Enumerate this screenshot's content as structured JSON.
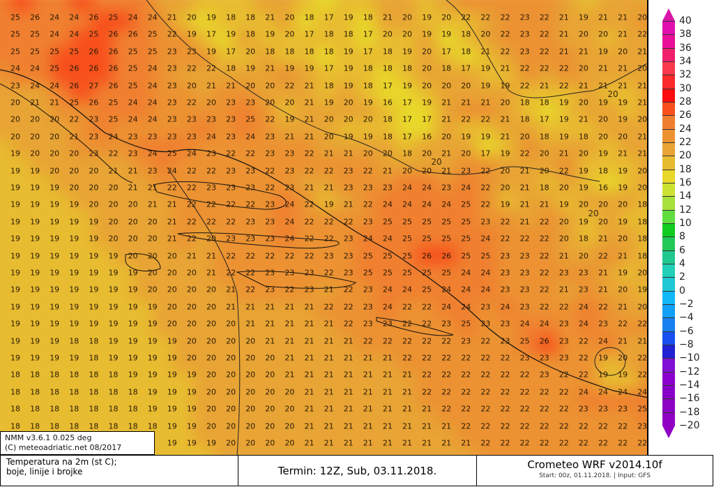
{
  "map": {
    "variable_grid": [
      [
        25,
        26,
        24,
        24,
        26,
        25,
        24,
        24,
        21,
        20,
        19,
        18,
        18,
        21,
        20,
        18,
        17,
        19,
        18,
        21,
        20,
        19,
        20,
        22,
        22,
        22,
        23,
        22,
        21,
        19,
        21,
        21,
        20
      ],
      [
        25,
        25,
        24,
        24,
        25,
        26,
        26,
        25,
        22,
        19,
        17,
        19,
        18,
        19,
        20,
        17,
        18,
        18,
        17,
        20,
        20,
        19,
        19,
        18,
        20,
        22,
        23,
        22,
        21,
        20,
        20,
        21,
        22
      ],
      [
        25,
        25,
        25,
        25,
        26,
        26,
        25,
        25,
        23,
        23,
        19,
        17,
        20,
        18,
        18,
        18,
        18,
        19,
        17,
        18,
        19,
        20,
        17,
        18,
        21,
        22,
        23,
        22,
        21,
        21,
        19,
        20,
        21
      ],
      [
        24,
        24,
        25,
        26,
        26,
        26,
        25,
        24,
        23,
        22,
        22,
        18,
        19,
        21,
        19,
        19,
        17,
        19,
        18,
        18,
        18,
        20,
        18,
        17,
        19,
        21,
        22,
        22,
        22,
        20,
        21,
        21,
        20
      ],
      [
        23,
        24,
        24,
        26,
        27,
        26,
        25,
        24,
        23,
        20,
        21,
        21,
        20,
        20,
        22,
        21,
        18,
        19,
        18,
        17,
        19,
        20,
        20,
        20,
        19,
        19,
        22,
        21,
        22,
        21,
        21,
        21,
        21
      ],
      [
        20,
        21,
        21,
        25,
        26,
        25,
        24,
        24,
        23,
        22,
        20,
        23,
        23,
        20,
        20,
        21,
        19,
        20,
        19,
        16,
        17,
        19,
        21,
        21,
        21,
        20,
        18,
        18,
        19,
        20,
        19,
        19,
        21
      ],
      [
        20,
        20,
        20,
        22,
        23,
        25,
        24,
        24,
        23,
        23,
        23,
        23,
        25,
        22,
        19,
        21,
        20,
        20,
        20,
        18,
        17,
        17,
        21,
        22,
        22,
        21,
        18,
        17,
        19,
        21,
        20,
        19,
        20
      ],
      [
        20,
        20,
        20,
        21,
        23,
        24,
        23,
        23,
        23,
        23,
        24,
        23,
        24,
        23,
        21,
        21,
        20,
        19,
        19,
        18,
        17,
        16,
        20,
        19,
        19,
        21,
        20,
        18,
        19,
        18,
        20,
        20,
        21
      ],
      [
        19,
        20,
        20,
        20,
        23,
        22,
        23,
        24,
        25,
        24,
        23,
        22,
        22,
        23,
        23,
        22,
        21,
        21,
        20,
        20,
        18,
        20,
        21,
        20,
        17,
        19,
        22,
        20,
        21,
        20,
        19,
        21,
        21
      ],
      [
        19,
        19,
        20,
        20,
        20,
        21,
        21,
        23,
        24,
        22,
        22,
        23,
        23,
        22,
        23,
        22,
        22,
        23,
        22,
        21,
        20,
        20,
        21,
        23,
        22,
        20,
        21,
        20,
        22,
        19,
        18,
        19,
        20
      ],
      [
        19,
        19,
        19,
        20,
        20,
        20,
        21,
        21,
        22,
        22,
        23,
        23,
        23,
        22,
        23,
        21,
        21,
        23,
        23,
        23,
        24,
        24,
        23,
        24,
        22,
        20,
        21,
        18,
        20,
        19,
        16,
        19,
        20
      ],
      [
        19,
        19,
        19,
        19,
        20,
        20,
        20,
        21,
        21,
        22,
        22,
        22,
        22,
        23,
        24,
        22,
        19,
        21,
        22,
        24,
        24,
        24,
        24,
        25,
        22,
        19,
        21,
        21,
        19,
        20,
        20,
        20,
        18
      ],
      [
        19,
        19,
        19,
        19,
        19,
        20,
        20,
        20,
        21,
        22,
        22,
        22,
        23,
        23,
        24,
        22,
        22,
        22,
        23,
        25,
        25,
        25,
        25,
        25,
        23,
        22,
        21,
        22,
        20,
        19,
        20,
        19,
        18
      ],
      [
        19,
        19,
        19,
        19,
        19,
        20,
        20,
        20,
        21,
        22,
        20,
        23,
        23,
        23,
        24,
        22,
        22,
        23,
        24,
        24,
        25,
        25,
        25,
        25,
        24,
        22,
        22,
        22,
        20,
        18,
        21,
        20,
        18
      ],
      [
        19,
        19,
        19,
        19,
        19,
        19,
        20,
        20,
        20,
        21,
        21,
        22,
        22,
        22,
        22,
        22,
        23,
        23,
        25,
        25,
        25,
        26,
        26,
        25,
        25,
        23,
        23,
        22,
        21,
        20,
        22,
        21,
        18
      ],
      [
        19,
        19,
        19,
        19,
        19,
        19,
        19,
        20,
        20,
        20,
        21,
        22,
        22,
        23,
        23,
        23,
        22,
        23,
        25,
        25,
        25,
        25,
        25,
        24,
        24,
        23,
        23,
        22,
        23,
        23,
        21,
        19,
        20
      ],
      [
        19,
        19,
        19,
        19,
        19,
        19,
        19,
        20,
        20,
        20,
        20,
        21,
        22,
        23,
        22,
        23,
        21,
        22,
        23,
        24,
        24,
        25,
        24,
        24,
        24,
        23,
        23,
        22,
        21,
        23,
        21,
        20,
        19
      ],
      [
        19,
        19,
        19,
        19,
        19,
        19,
        19,
        19,
        20,
        20,
        20,
        21,
        21,
        21,
        21,
        21,
        22,
        22,
        23,
        24,
        22,
        22,
        24,
        24,
        23,
        24,
        23,
        22,
        22,
        24,
        22,
        21,
        20
      ],
      [
        19,
        19,
        19,
        19,
        19,
        19,
        19,
        19,
        20,
        20,
        20,
        20,
        21,
        21,
        21,
        21,
        21,
        22,
        23,
        23,
        22,
        22,
        23,
        25,
        23,
        23,
        24,
        24,
        23,
        24,
        23,
        22,
        22
      ],
      [
        19,
        19,
        19,
        18,
        18,
        19,
        19,
        19,
        19,
        20,
        20,
        20,
        20,
        21,
        21,
        21,
        21,
        21,
        22,
        22,
        22,
        22,
        22,
        23,
        22,
        23,
        25,
        26,
        23,
        22,
        24,
        21,
        21
      ],
      [
        19,
        19,
        19,
        19,
        18,
        19,
        19,
        19,
        19,
        20,
        20,
        20,
        20,
        20,
        21,
        21,
        21,
        21,
        21,
        21,
        22,
        22,
        22,
        22,
        22,
        22,
        23,
        23,
        23,
        22,
        19,
        20,
        22
      ],
      [
        18,
        18,
        18,
        18,
        18,
        18,
        19,
        19,
        19,
        19,
        20,
        20,
        20,
        20,
        21,
        21,
        21,
        21,
        21,
        21,
        21,
        22,
        22,
        22,
        22,
        22,
        22,
        23,
        22,
        22,
        19,
        19,
        22
      ],
      [
        18,
        18,
        18,
        18,
        18,
        18,
        18,
        19,
        19,
        19,
        20,
        20,
        20,
        20,
        20,
        21,
        21,
        21,
        21,
        21,
        21,
        22,
        22,
        22,
        22,
        22,
        22,
        22,
        22,
        24,
        24,
        24,
        24
      ],
      [
        18,
        18,
        18,
        18,
        18,
        18,
        18,
        19,
        19,
        19,
        20,
        20,
        20,
        20,
        20,
        21,
        21,
        21,
        21,
        21,
        21,
        21,
        22,
        22,
        22,
        22,
        22,
        22,
        22,
        23,
        23,
        23,
        25
      ],
      [
        18,
        18,
        18,
        18,
        18,
        18,
        18,
        18,
        19,
        19,
        20,
        20,
        20,
        20,
        20,
        21,
        21,
        21,
        21,
        21,
        21,
        21,
        21,
        22,
        22,
        22,
        22,
        22,
        22,
        22,
        22,
        22,
        23
      ],
      [
        null,
        null,
        null,
        null,
        null,
        null,
        null,
        null,
        19,
        19,
        19,
        20,
        20,
        20,
        20,
        21,
        21,
        21,
        21,
        21,
        21,
        21,
        21,
        21,
        22,
        22,
        22,
        22,
        22,
        22,
        22,
        22,
        22
      ]
    ],
    "contour_labels": [
      "20",
      "20",
      "20"
    ]
  },
  "colorbar": {
    "ticks": [
      "40",
      "38",
      "36",
      "34",
      "32",
      "30",
      "28",
      "26",
      "24",
      "22",
      "20",
      "18",
      "16",
      "14",
      "12",
      "10",
      "8",
      "6",
      "4",
      "2",
      "0",
      "−2",
      "−4",
      "−6",
      "−8",
      "−10",
      "−12",
      "−14",
      "−16",
      "−18",
      "−20"
    ],
    "band_colors": [
      "#e010b0",
      "#e81098",
      "#f0206c",
      "#f83a4c",
      "#fa2a2a",
      "#fc0c0c",
      "#f8501c",
      "#f08030",
      "#ec9232",
      "#e8a434",
      "#e8bc30",
      "#e8d82a",
      "#cce232",
      "#a8e03a",
      "#60de40",
      "#10cc20",
      "#20c858",
      "#20c890",
      "#20d0b8",
      "#20c8d4",
      "#10b8f8",
      "#10a0f6",
      "#1880f0",
      "#1850f0",
      "#2020d4",
      "#8010d4",
      "#8a00cc",
      "#8800c8",
      "#8c00c4",
      "#9000c4"
    ],
    "top_arrow_color": "#d818a8",
    "bottom_arrow_color": "#9000c4"
  },
  "info_box": {
    "line1": "NMM v3.6.1 0.025 deg",
    "line2": "(C) meteoadriatic.net 08/2017"
  },
  "footer": {
    "left_line1": "Temperatura na 2m (st C);",
    "left_line2": "boje, linije i brojke",
    "termin": "Termin: 12Z, Sub, 03.11.2018.",
    "model": "Crometeo WRF v2014.10f",
    "start": "Start: 00z, 01.11.2018. | Input: GFS"
  }
}
